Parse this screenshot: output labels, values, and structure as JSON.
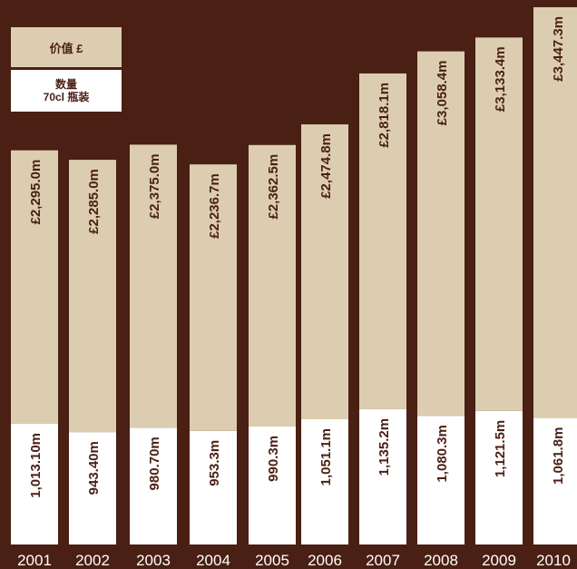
{
  "legend": {
    "value_label": "价值 £",
    "volume_label_line1": "数量",
    "volume_label_line2": "70cl 瓶装"
  },
  "colors": {
    "background": "#4a1f14",
    "value_segment": "#dccdb0",
    "volume_segment": "#ffffff",
    "text_dark": "#4a1f14",
    "year_label": "#ffffff"
  },
  "chart_data": {
    "type": "bar",
    "stacked": true,
    "categories": [
      "2001",
      "2002",
      "2003",
      "2004",
      "2005",
      "2006",
      "2007",
      "2008",
      "2009",
      "2010"
    ],
    "series": [
      {
        "name": "数量 70cl 瓶装",
        "values": [
          1013.1,
          943.4,
          980.7,
          953.3,
          990.3,
          1051.1,
          1135.2,
          1080.3,
          1121.5,
          1061.8
        ],
        "labels": [
          "1,013.10m",
          "943.40m",
          "980.70m",
          "953.3m",
          "990.3m",
          "1,051.1m",
          "1,135.2m",
          "1,080.3m",
          "1,121.5m",
          "1,061.8m"
        ]
      },
      {
        "name": "价值 £",
        "values": [
          2295.0,
          2285.0,
          2375.0,
          2236.7,
          2362.5,
          2474.8,
          2818.1,
          3058.4,
          3133.4,
          3447.3
        ],
        "labels": [
          "£2,295.0m",
          "£2,285.0m",
          "£2,375.0m",
          "£2,236.7m",
          "£2,362.5m",
          "£2,474.8m",
          "£2,818.1m",
          "£3,058.4m",
          "£3,133.4m",
          "£3,447.3m"
        ]
      }
    ],
    "title": "",
    "xlabel": "",
    "ylabel": "",
    "ylim": [
      0,
      4510
    ],
    "grid": false,
    "legend_position": "top-left"
  }
}
